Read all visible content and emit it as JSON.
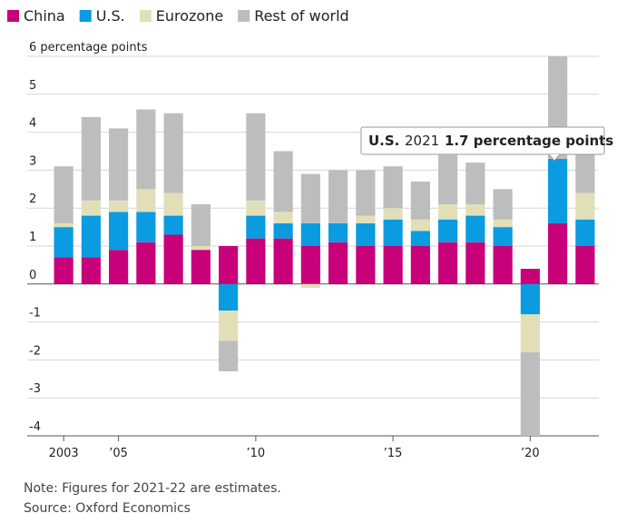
{
  "chart_data": {
    "type": "stacked_bar",
    "categories": [
      "2003",
      null,
      "’05",
      null,
      null,
      null,
      null,
      "’10",
      null,
      null,
      null,
      null,
      "’15",
      null,
      null,
      null,
      null,
      "’20",
      null,
      null
    ],
    "series": [
      {
        "name": "China",
        "color": "#c8007a",
        "values": [
          0.7,
          0.7,
          0.9,
          1.1,
          1.3,
          0.9,
          1.0,
          1.2,
          1.2,
          1.0,
          1.1,
          1.0,
          1.0,
          1.0,
          1.1,
          1.1,
          1.0,
          0.4,
          1.6,
          1.0
        ]
      },
      {
        "name": "U.S.",
        "color": "#0a9be0",
        "values": [
          0.8,
          1.1,
          1.0,
          0.8,
          0.5,
          0,
          -0.7,
          0.6,
          0.4,
          0.6,
          0.5,
          0.6,
          0.7,
          0.4,
          0.6,
          0.7,
          0.5,
          -0.8,
          1.7,
          0.7
        ]
      },
      {
        "name": "Eurozone",
        "color": "#e0dfb8",
        "values": [
          0.1,
          0.4,
          0.3,
          0.6,
          0.6,
          0.1,
          -0.8,
          0.4,
          0.3,
          -0.1,
          0,
          0.2,
          0.3,
          0.3,
          0.4,
          0.3,
          0.2,
          -1.0,
          0,
          0.7
        ]
      },
      {
        "name": "Rest of world",
        "color": "#bdbdbd",
        "values": [
          1.5,
          2.2,
          1.9,
          2.1,
          2.1,
          1.1,
          -0.8,
          2.3,
          1.6,
          1.3,
          1.4,
          1.2,
          1.1,
          1.0,
          1.3,
          1.1,
          0.8,
          -2.2,
          2.7,
          1.3
        ]
      }
    ],
    "ylim": [
      -4,
      6
    ],
    "yticks": [
      -4,
      -3,
      -2,
      -1,
      0,
      1,
      2,
      3,
      4,
      5,
      {
        "value": 6,
        "label": "6 percentage points"
      }
    ],
    "grid": true,
    "legend": "top-left",
    "tooltip": {
      "series": "U.S.",
      "year": "2021",
      "text": "1.7 percentage points"
    },
    "notes": [
      "Note: Figures for 2021-22 are estimates.",
      "Source: Oxford Economics"
    ]
  }
}
